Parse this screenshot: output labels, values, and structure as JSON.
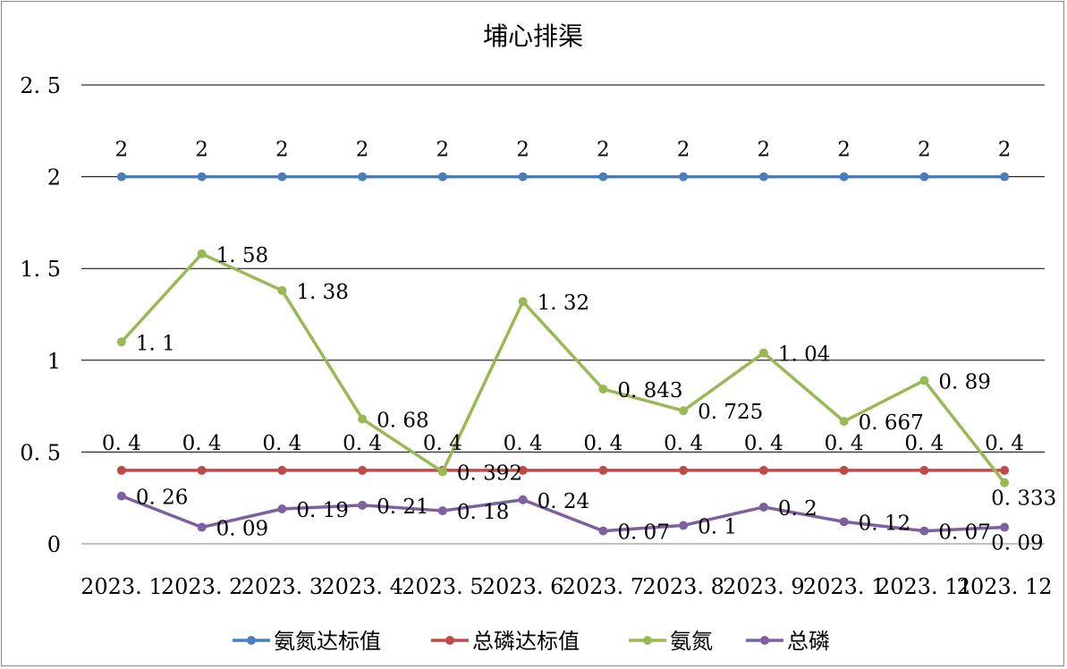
{
  "chart_data": {
    "type": "line",
    "title": "埔心排渠",
    "xlabel": "",
    "ylabel": "",
    "ylim": [
      0,
      2.5
    ],
    "yticks": [
      "0",
      "0. 5",
      "1",
      "1. 5",
      "2",
      "2. 5"
    ],
    "ytick_values": [
      0,
      0.5,
      1,
      1.5,
      2,
      2.5
    ],
    "categories": [
      "2023. 1",
      "2023. 2",
      "2023. 3",
      "2023. 4",
      "2023. 5",
      "2023. 6",
      "2023. 7",
      "2023. 8",
      "2023. 9",
      "2023. 1",
      "2023. 11",
      "2023. 12"
    ],
    "grid": true,
    "legend_position": "bottom",
    "series": [
      {
        "name": "氨氮达标值",
        "color": "#4a7ebb",
        "values": [
          2,
          2,
          2,
          2,
          2,
          2,
          2,
          2,
          2,
          2,
          2,
          2
        ],
        "labels": [
          "2",
          "2",
          "2",
          "2",
          "2",
          "2",
          "2",
          "2",
          "2",
          "2",
          "2",
          "2"
        ],
        "label_position": "above"
      },
      {
        "name": "总磷达标值",
        "color": "#be4b48",
        "values": [
          0.4,
          0.4,
          0.4,
          0.4,
          0.4,
          0.4,
          0.4,
          0.4,
          0.4,
          0.4,
          0.4,
          0.4
        ],
        "labels": [
          "0. 4",
          "0. 4",
          "0. 4",
          "0. 4",
          "0. 4",
          "0. 4",
          "0. 4",
          "0. 4",
          "0. 4",
          "0. 4",
          "0. 4",
          "0. 4"
        ],
        "label_position": "above"
      },
      {
        "name": "氨氮",
        "color": "#98b954",
        "values": [
          1.1,
          1.58,
          1.38,
          0.68,
          0.392,
          1.32,
          0.843,
          0.725,
          1.04,
          0.667,
          0.89,
          0.333
        ],
        "labels": [
          "1. 1",
          "1. 58",
          "1. 38",
          "0. 68",
          "0. 392",
          "1. 32",
          "0. 843",
          "0. 725",
          "1. 04",
          "0. 667",
          "0. 89",
          "0. 333"
        ],
        "label_position": "right"
      },
      {
        "name": "总磷",
        "color": "#7d60a0",
        "values": [
          0.26,
          0.09,
          0.19,
          0.21,
          0.18,
          0.24,
          0.07,
          0.1,
          0.2,
          0.12,
          0.07,
          0.09
        ],
        "labels": [
          "0. 26",
          "0. 09",
          "0. 19",
          "0. 21",
          "0. 18",
          "0. 24",
          "0. 07",
          "0. 1",
          "0. 2",
          "0. 12",
          "0. 07",
          "0. 09"
        ],
        "label_position": "right"
      }
    ]
  }
}
